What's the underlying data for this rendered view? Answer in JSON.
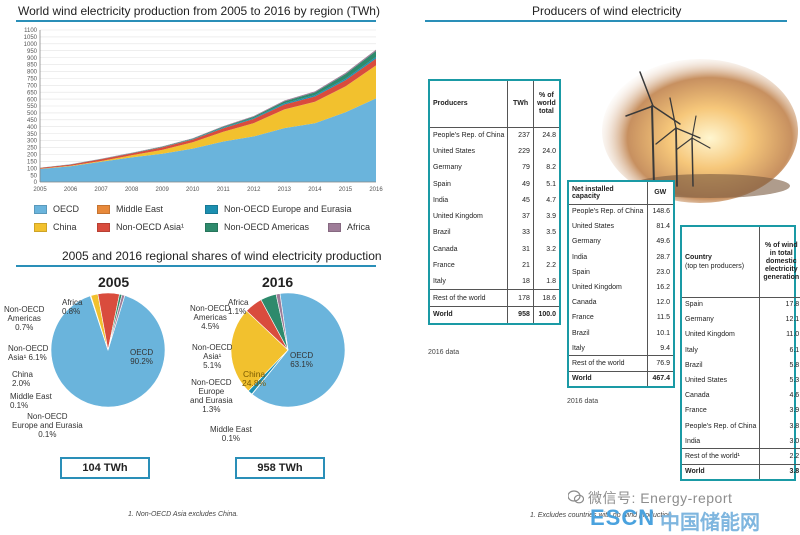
{
  "left": {
    "title": "World wind electricity production from 2005 to 2016 by region (TWh)",
    "section2_title": "2005 and 2016 regional shares of wind electricity production",
    "footnote": "1. Non-OECD Asia excludes China."
  },
  "right": {
    "title": "Producers of wind electricity",
    "photo_name": "wind-turbines-photo"
  },
  "chart_data": [
    {
      "type": "area",
      "title": "World wind electricity production from 2005 to 2016 by region (TWh)",
      "stacked": true,
      "x": [
        "2005",
        "2006",
        "2007",
        "2008",
        "2009",
        "2010",
        "2011",
        "2012",
        "2013",
        "2014",
        "2015",
        "2016"
      ],
      "ylim": [
        0,
        1100
      ],
      "yticks": [
        0,
        50,
        100,
        150,
        200,
        250,
        300,
        350,
        400,
        450,
        500,
        550,
        600,
        650,
        700,
        750,
        800,
        850,
        900,
        950,
        1000,
        1050,
        1100
      ],
      "grid": true,
      "legend_position": "bottom",
      "series": [
        {
          "name": "OECD",
          "color": "#6ab4dc",
          "values": [
            94,
            114,
            146,
            178,
            205,
            242,
            293,
            330,
            390,
            425,
            505,
            605
          ]
        },
        {
          "name": "China",
          "color": "#f2c12e",
          "values": [
            2,
            4,
            6,
            15,
            27,
            45,
            70,
            96,
            135,
            155,
            186,
            238
          ]
        },
        {
          "name": "Middle East",
          "color": "#e8893a",
          "values": [
            0.1,
            0.1,
            0.1,
            0.2,
            0.2,
            0.3,
            0.3,
            0.4,
            0.5,
            0.6,
            0.8,
            1
          ]
        },
        {
          "name": "Non-OECD Asia¹",
          "color": "#d94c3d",
          "values": [
            6,
            8,
            12,
            14,
            18,
            20,
            26,
            30,
            35,
            38,
            45,
            49
          ]
        },
        {
          "name": "Non-OECD Europe and Eurasia",
          "color": "#1c8fb0",
          "values": [
            0.1,
            0.3,
            0.5,
            1,
            2,
            3,
            5,
            7,
            9,
            10,
            11,
            12
          ]
        },
        {
          "name": "Non-OECD Americas",
          "color": "#2e8a6c",
          "values": [
            0.7,
            0.9,
            1.5,
            2,
            3,
            4,
            6,
            9,
            14,
            20,
            33,
            43
          ]
        },
        {
          "name": "Africa",
          "color": "#9e7c98",
          "values": [
            0.8,
            1,
            1.5,
            2,
            2.5,
            3,
            4,
            5,
            6,
            7,
            8.5,
            10
          ]
        }
      ]
    },
    {
      "type": "pie",
      "title": "2005",
      "total": "104 TWh",
      "slices": [
        {
          "name": "OECD",
          "value": 90.2,
          "label": "OECD\n90.2%",
          "color": "#6ab4dc"
        },
        {
          "name": "Non-OECD Europe and Eurasia",
          "value": 0.1,
          "label": "Non-OECD\nEurope and Eurasia\n0.1%",
          "color": "#1c8fb0"
        },
        {
          "name": "Middle East",
          "value": 0.1,
          "label": "Middle East\n0.1%",
          "color": "#e8893a"
        },
        {
          "name": "China",
          "value": 2.0,
          "label": "China\n2.0%",
          "color": "#f2c12e"
        },
        {
          "name": "Non-OECD Asia¹",
          "value": 6.1,
          "label": "Non-OECD\nAsia¹ 6.1%",
          "color": "#d94c3d"
        },
        {
          "name": "Non-OECD Americas",
          "value": 0.7,
          "label": "Non-OECD\nAmericas\n0.7%",
          "color": "#2e8a6c"
        },
        {
          "name": "Africa",
          "value": 0.8,
          "label": "Africa\n0.8%",
          "color": "#9e7c98"
        }
      ]
    },
    {
      "type": "pie",
      "title": "2016",
      "total": "958 TWh",
      "slices": [
        {
          "name": "OECD",
          "value": 63.1,
          "label": "OECD\n63.1%",
          "color": "#6ab4dc"
        },
        {
          "name": "Middle East",
          "value": 0.1,
          "label": "Middle East\n0.1%",
          "color": "#e8893a"
        },
        {
          "name": "Non-OECD Europe and Eurasia",
          "value": 1.3,
          "label": "Non-OECD\nEurope\nand Eurasia\n1.3%",
          "color": "#1c8fb0"
        },
        {
          "name": "China",
          "value": 24.8,
          "label": "China\n24.8%",
          "color": "#f2c12e"
        },
        {
          "name": "Non-OECD Asia¹",
          "value": 5.1,
          "label": "Non-OECD\nAsia¹\n5.1%",
          "color": "#d94c3d"
        },
        {
          "name": "Non-OECD Americas",
          "value": 4.5,
          "label": "Non-OECD\nAmericas\n4.5%",
          "color": "#2e8a6c"
        },
        {
          "name": "Africa",
          "value": 1.1,
          "label": "Africa\n1.1%",
          "color": "#9e7c98"
        }
      ]
    },
    {
      "type": "table",
      "headers": [
        "Producers",
        "TWh",
        "% of world total"
      ],
      "rows": [
        [
          "People's Rep. of China",
          "237",
          "24.8"
        ],
        [
          "United States",
          "229",
          "24.0"
        ],
        [
          "Germany",
          "79",
          "8.2"
        ],
        [
          "Spain",
          "49",
          "5.1"
        ],
        [
          "India",
          "45",
          "4.7"
        ],
        [
          "United Kingdom",
          "37",
          "3.9"
        ],
        [
          "Brazil",
          "33",
          "3.5"
        ],
        [
          "Canada",
          "31",
          "3.2"
        ],
        [
          "France",
          "21",
          "2.2"
        ],
        [
          "Italy",
          "18",
          "1.8"
        ]
      ],
      "rest": [
        "Rest of the world",
        "178",
        "18.6"
      ],
      "total": [
        "World",
        "958",
        "100.0"
      ],
      "note": "2016 data"
    },
    {
      "type": "table",
      "headers": [
        "Net installed capacity",
        "GW"
      ],
      "rows": [
        [
          "People's Rep. of China",
          "148.6"
        ],
        [
          "United States",
          "81.4"
        ],
        [
          "Germany",
          "49.6"
        ],
        [
          "India",
          "28.7"
        ],
        [
          "Spain",
          "23.0"
        ],
        [
          "United Kingdom",
          "16.2"
        ],
        [
          "Canada",
          "12.0"
        ],
        [
          "France",
          "11.5"
        ],
        [
          "Brazil",
          "10.1"
        ],
        [
          "Italy",
          "9.4"
        ]
      ],
      "rest": [
        "Rest of the world",
        "76.9"
      ],
      "total": [
        "World",
        "467.4"
      ],
      "note": "2016 data"
    },
    {
      "type": "table",
      "headers": [
        "Country",
        "(top ten producers)",
        "% of wind in total domestic electricity generation"
      ],
      "rows": [
        [
          "Spain",
          "17.8"
        ],
        [
          "Germany",
          "12.1"
        ],
        [
          "United Kingdom",
          "11.0"
        ],
        [
          "Italy",
          "6.1"
        ],
        [
          "Brazil",
          "5.8"
        ],
        [
          "United States",
          "5.3"
        ],
        [
          "Canada",
          "4.6"
        ],
        [
          "France",
          "3.9"
        ],
        [
          "People's Rep. of China",
          "3.8"
        ],
        [
          "India",
          "3.0"
        ]
      ],
      "rest": [
        "Rest of the world¹",
        "2.2"
      ],
      "total": [
        "World",
        "3.8"
      ],
      "footnote": "1. Excludes countries with no wind production."
    }
  ],
  "watermark": {
    "wechat_icon": "wechat-icon",
    "wechat": "微信号: Energy-report",
    "escn": "ESCN",
    "cn": "中国储能网"
  }
}
